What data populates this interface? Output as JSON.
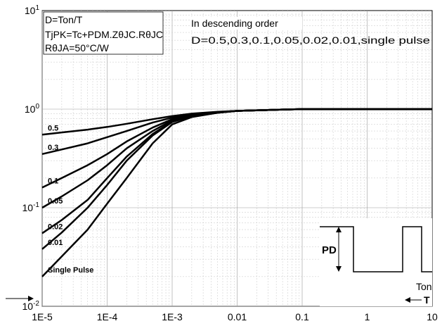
{
  "chart_data": {
    "type": "line",
    "x_scale": "log",
    "y_scale": "log",
    "xlim": [
      1e-05,
      10
    ],
    "ylim": [
      0.01,
      10
    ],
    "x_ticks": [
      "1E-5",
      "1E-4",
      "1E-3",
      "0.01",
      "0.1",
      "1",
      "10"
    ],
    "y_ticks": [
      "10^1",
      "10^0",
      "10^-1",
      "10^-2"
    ],
    "annotations": {
      "d_def": "D=Ton/T",
      "tjpk": "TjPK=Tc+PDM.ZθJC.RθJC",
      "rth": "RθJA=50°C/W",
      "order_title": "In descending order",
      "order_list": "D=0.5,0.3,0.1,0.05,0.02,0.01,single pulse",
      "pd": "PD",
      "ton": "Ton",
      "t": "T"
    },
    "series": [
      {
        "label": "0.5",
        "x": [
          1e-05,
          2e-05,
          5e-05,
          0.0001,
          0.0002,
          0.0005,
          0.001,
          0.002,
          0.005,
          0.01,
          0.05,
          0.1,
          1,
          10
        ],
        "y": [
          0.55,
          0.58,
          0.62,
          0.66,
          0.71,
          0.79,
          0.85,
          0.9,
          0.94,
          0.96,
          0.99,
          1.0,
          1.0,
          1.0
        ]
      },
      {
        "label": "0.3",
        "x": [
          1e-05,
          2e-05,
          5e-05,
          0.0001,
          0.0002,
          0.0005,
          0.001,
          0.002,
          0.005,
          0.01,
          0.05,
          0.1,
          1,
          10
        ],
        "y": [
          0.35,
          0.39,
          0.45,
          0.52,
          0.6,
          0.73,
          0.82,
          0.89,
          0.93,
          0.96,
          0.99,
          1.0,
          1.0,
          1.0
        ]
      },
      {
        "label": "0.1",
        "x": [
          1e-05,
          2e-05,
          5e-05,
          0.0001,
          0.0002,
          0.0005,
          0.001,
          0.002,
          0.005,
          0.01,
          0.05,
          0.1,
          1,
          10
        ],
        "y": [
          0.16,
          0.2,
          0.27,
          0.35,
          0.47,
          0.65,
          0.79,
          0.87,
          0.93,
          0.96,
          0.99,
          1.0,
          1.0,
          1.0
        ]
      },
      {
        "label": "0.05",
        "x": [
          1e-05,
          2e-05,
          5e-05,
          0.0001,
          0.0002,
          0.0005,
          0.001,
          0.002,
          0.005,
          0.01,
          0.05,
          0.1,
          1,
          10
        ],
        "y": [
          0.1,
          0.13,
          0.19,
          0.27,
          0.4,
          0.6,
          0.77,
          0.86,
          0.93,
          0.96,
          0.99,
          1.0,
          1.0,
          1.0
        ]
      },
      {
        "label": "0.02",
        "x": [
          1e-05,
          2e-05,
          5e-05,
          0.0001,
          0.0002,
          0.0005,
          0.001,
          0.002,
          0.005,
          0.01,
          0.05,
          0.1,
          1,
          10
        ],
        "y": [
          0.055,
          0.075,
          0.12,
          0.2,
          0.33,
          0.56,
          0.75,
          0.85,
          0.92,
          0.96,
          0.99,
          1.0,
          1.0,
          1.0
        ]
      },
      {
        "label": "0.01",
        "x": [
          1e-05,
          2e-05,
          5e-05,
          0.0001,
          0.0002,
          0.0005,
          0.001,
          0.002,
          0.005,
          0.01,
          0.05,
          0.1,
          1,
          10
        ],
        "y": [
          0.038,
          0.056,
          0.1,
          0.17,
          0.3,
          0.54,
          0.74,
          0.85,
          0.92,
          0.96,
          0.99,
          1.0,
          1.0,
          1.0
        ]
      },
      {
        "label": "Single Pulse",
        "x": [
          1e-05,
          2e-05,
          5e-05,
          0.0001,
          0.0002,
          0.0005,
          0.001,
          0.002,
          0.005,
          0.01,
          0.05,
          0.1,
          1,
          10
        ],
        "y": [
          0.02,
          0.032,
          0.06,
          0.11,
          0.2,
          0.45,
          0.7,
          0.83,
          0.92,
          0.96,
          0.99,
          1.0,
          1.0,
          1.0
        ]
      }
    ]
  },
  "colors": {
    "line": "#000000",
    "grid": "#d0d0d0",
    "background": "#ffffff"
  }
}
